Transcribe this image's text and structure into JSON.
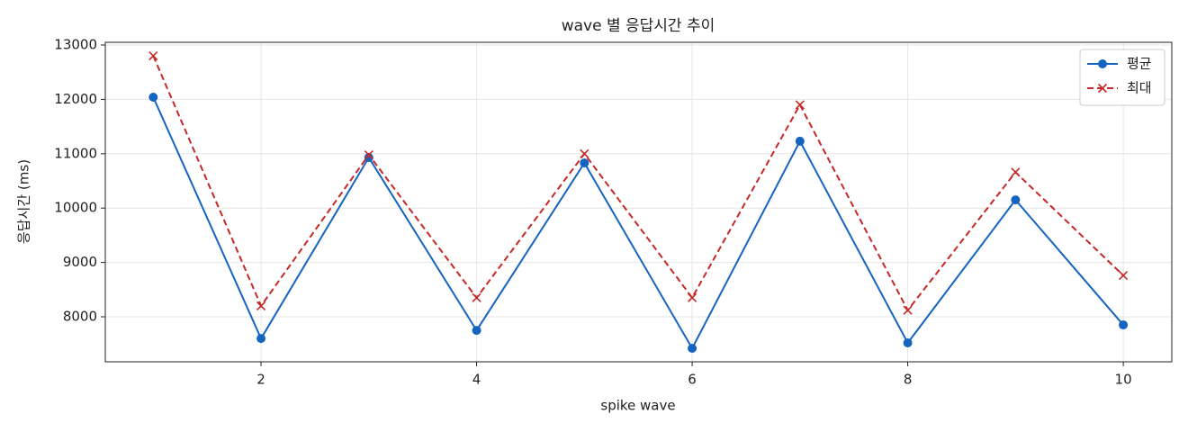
{
  "chart_data": {
    "type": "line",
    "title": "wave 별 응답시간 추이",
    "xlabel": "spike wave",
    "ylabel": "응답시간 (ms)",
    "x": [
      1,
      2,
      3,
      4,
      5,
      6,
      7,
      8,
      9,
      10
    ],
    "series": [
      {
        "name": "평균",
        "color": "#1565c0",
        "marker": "o",
        "linestyle": "solid",
        "values": [
          12040,
          7600,
          10930,
          7750,
          10830,
          7420,
          11230,
          7520,
          10150,
          7850
        ]
      },
      {
        "name": "최대",
        "color": "#c62828",
        "marker": "x",
        "linestyle": "dashed",
        "values": [
          12800,
          8200,
          10980,
          8350,
          11000,
          8350,
          11900,
          8120,
          10660,
          8760
        ]
      }
    ],
    "xlim": [
      0.555,
      10.45
    ],
    "ylim": [
      7172,
      13050
    ],
    "xticks": [
      2,
      4,
      6,
      8,
      10
    ],
    "yticks": [
      8000,
      9000,
      10000,
      11000,
      12000,
      13000
    ],
    "grid": true,
    "legend": "upper right"
  }
}
